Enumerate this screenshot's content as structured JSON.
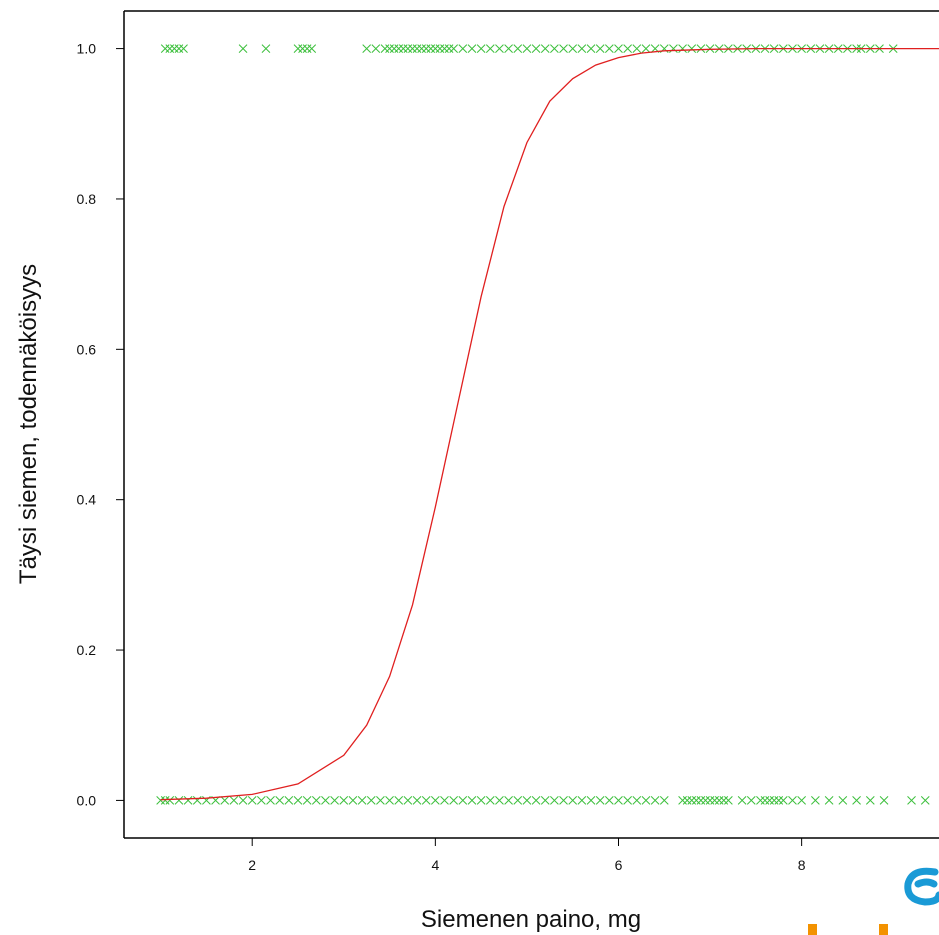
{
  "chart_data": {
    "type": "scatter",
    "xlabel": "Siemenen paino, mg",
    "ylabel": "Täysi siemen, todennäköisyys",
    "xlim": [
      0.6,
      9.5
    ],
    "ylim": [
      -0.05,
      1.05
    ],
    "x_ticks": [
      2,
      4,
      6,
      8
    ],
    "y_ticks": [
      0.0,
      0.2,
      0.4,
      0.6,
      0.8,
      1.0
    ],
    "y_tick_labels": [
      "0.0",
      "0.2",
      "0.4",
      "0.6",
      "0.8",
      "1.0"
    ],
    "grid": false,
    "series": [
      {
        "kind": "points",
        "marker": "x",
        "color": "#3cbf3c",
        "y_value": 1.0,
        "x": [
          1.05,
          1.1,
          1.15,
          1.2,
          1.25,
          1.9,
          2.15,
          2.5,
          2.55,
          2.6,
          2.65,
          3.25,
          3.35,
          3.45,
          3.5,
          3.55,
          3.6,
          3.65,
          3.7,
          3.75,
          3.8,
          3.85,
          3.9,
          3.95,
          4.0,
          4.05,
          4.1,
          4.15,
          4.2,
          4.3,
          4.4,
          4.5,
          4.6,
          4.7,
          4.8,
          4.9,
          5.0,
          5.1,
          5.2,
          5.3,
          5.4,
          5.5,
          5.6,
          5.7,
          5.8,
          5.9,
          6.0,
          6.1,
          6.2,
          6.3,
          6.4,
          6.5,
          6.6,
          6.7,
          6.8,
          6.9,
          7.0,
          7.1,
          7.2,
          7.3,
          7.4,
          7.5,
          7.6,
          7.7,
          7.8,
          7.9,
          8.0,
          8.1,
          8.2,
          8.3,
          8.4,
          8.5,
          8.6,
          8.65,
          8.75,
          8.85,
          9.0
        ]
      },
      {
        "kind": "points",
        "marker": "x",
        "color": "#3cbf3c",
        "y_value": 0.0,
        "x": [
          1.0,
          1.05,
          1.1,
          1.2,
          1.3,
          1.4,
          1.5,
          1.6,
          1.7,
          1.8,
          1.9,
          2.0,
          2.1,
          2.2,
          2.3,
          2.4,
          2.5,
          2.6,
          2.7,
          2.8,
          2.9,
          3.0,
          3.1,
          3.2,
          3.3,
          3.4,
          3.5,
          3.6,
          3.7,
          3.8,
          3.9,
          4.0,
          4.1,
          4.2,
          4.3,
          4.4,
          4.5,
          4.6,
          4.7,
          4.8,
          4.9,
          5.0,
          5.1,
          5.2,
          5.3,
          5.4,
          5.5,
          5.6,
          5.7,
          5.8,
          5.9,
          6.0,
          6.1,
          6.2,
          6.3,
          6.4,
          6.5,
          6.7,
          6.75,
          6.8,
          6.85,
          6.9,
          6.95,
          7.0,
          7.05,
          7.1,
          7.15,
          7.2,
          7.35,
          7.45,
          7.55,
          7.6,
          7.65,
          7.7,
          7.75,
          7.8,
          7.9,
          8.0,
          8.15,
          8.3,
          8.45,
          8.6,
          8.75,
          8.9,
          9.2,
          9.35,
          9.5
        ]
      },
      {
        "kind": "curve",
        "color": "#e02020",
        "x": [
          1.0,
          1.5,
          2.0,
          2.5,
          3.0,
          3.25,
          3.5,
          3.75,
          4.0,
          4.25,
          4.5,
          4.75,
          5.0,
          5.25,
          5.5,
          5.75,
          6.0,
          6.25,
          6.5,
          7.0,
          7.5,
          8.0,
          8.5,
          9.0,
          9.5
        ],
        "y": [
          0.001,
          0.003,
          0.008,
          0.022,
          0.06,
          0.1,
          0.165,
          0.26,
          0.39,
          0.53,
          0.67,
          0.79,
          0.875,
          0.93,
          0.96,
          0.978,
          0.988,
          0.994,
          0.997,
          0.999,
          1.0,
          1.0,
          1.0,
          1.0,
          1.0
        ]
      }
    ]
  }
}
